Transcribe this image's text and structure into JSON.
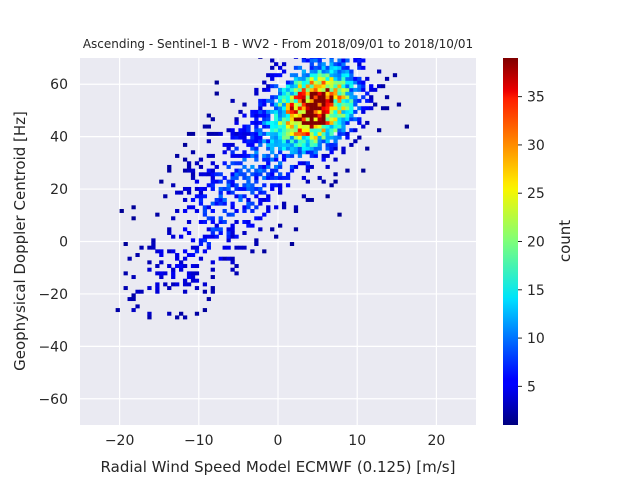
{
  "chart_data": {
    "type": "heatmap",
    "title": "Ascending - Sentinel-1 B - WV2 - From 2018/09/01 to 2018/10/01",
    "xlabel": "Radial Wind Speed Model ECMWF (0.125) [m/s]",
    "ylabel": "Geophysical Doppler Centroid [Hz]",
    "xlim": [
      -25,
      25
    ],
    "ylim": [
      -70,
      70
    ],
    "xticks": [
      -20,
      -10,
      0,
      10,
      20
    ],
    "yticks": [
      -60,
      -40,
      -20,
      0,
      20,
      40,
      60
    ],
    "grid": true,
    "colormap": "jet",
    "colorbar": {
      "label": "count",
      "range": [
        1,
        39
      ],
      "ticks": [
        5,
        10,
        15,
        20,
        25,
        30,
        35
      ]
    },
    "relationship": {
      "slope_hz_per_ms": 3.2,
      "intercept_hz": 38,
      "x_range_of_data": [
        -21,
        18
      ],
      "y_range_of_data": [
        -31,
        70
      ],
      "peak": {
        "x": 5,
        "y": 50,
        "count": 39
      }
    },
    "background_color": "#eaeaf2"
  }
}
